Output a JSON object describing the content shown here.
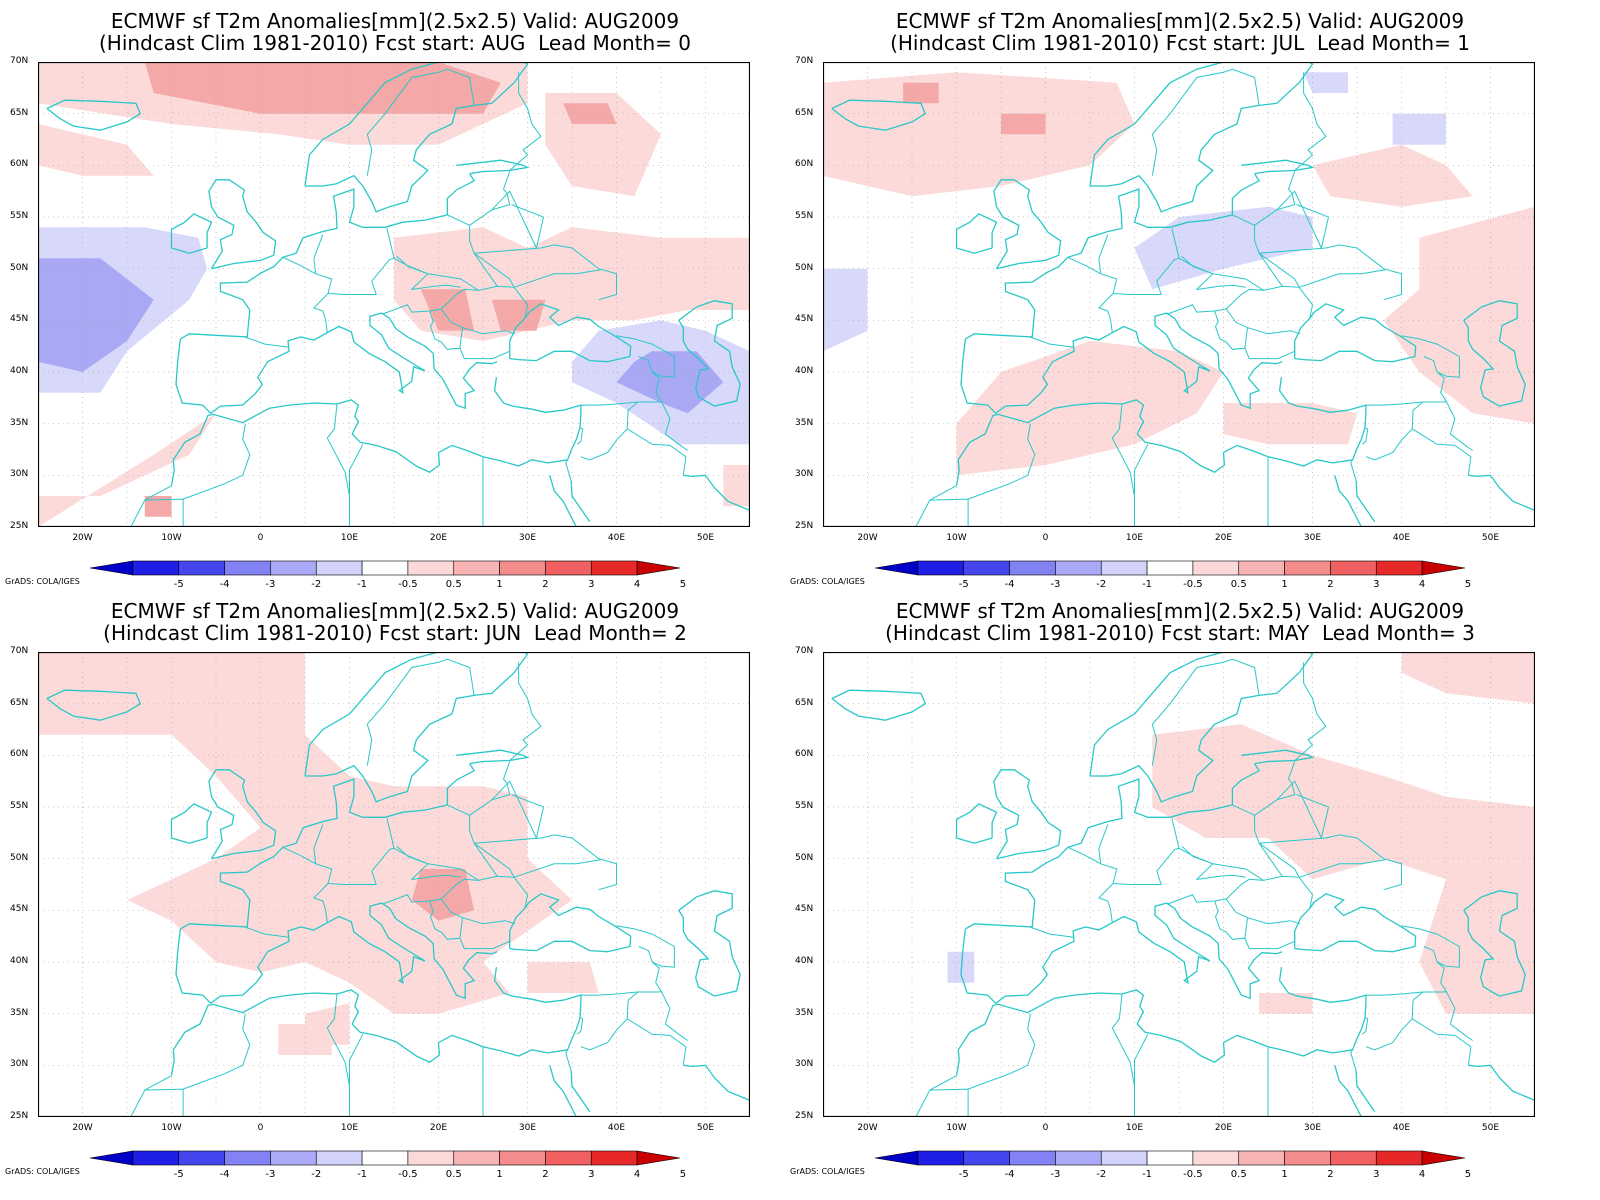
{
  "panels": [
    {
      "line1": "ECMWF sf T2m Anomalies[mm](2.5x2.5) Valid: AUG2009",
      "line2": "(Hindcast Clim 1981-2010) Fcst start: AUG  Lead Month= 0"
    },
    {
      "line1": "ECMWF sf T2m Anomalies[mm](2.5x2.5) Valid: AUG2009",
      "line2": "(Hindcast Clim 1981-2010) Fcst start: JUL  Lead Month= 1"
    },
    {
      "line1": "ECMWF sf T2m Anomalies[mm](2.5x2.5) Valid: AUG2009",
      "line2": "(Hindcast Clim 1981-2010) Fcst start: JUN  Lead Month= 2"
    },
    {
      "line1": "ECMWF sf T2m Anomalies[mm](2.5x2.5) Valid: AUG2009",
      "line2": "(Hindcast Clim 1981-2010) Fcst start: MAY  Lead Month= 3"
    }
  ],
  "lat_labels": [
    "70N",
    "65N",
    "60N",
    "55N",
    "50N",
    "45N",
    "40N",
    "35N",
    "30N",
    "25N"
  ],
  "lon_labels": [
    "20W",
    "10W",
    "0",
    "10E",
    "20E",
    "30E",
    "40E",
    "50E"
  ],
  "colorbar": {
    "labels": [
      "-5",
      "-4",
      "-3",
      "-2",
      "-1",
      "-0.5",
      "0.5",
      "1",
      "2",
      "3",
      "4",
      "5"
    ],
    "colors": [
      "#0000c8",
      "#1e1ee6",
      "#4646f0",
      "#8282f5",
      "#aaaaf8",
      "#d2d2fb",
      "#ffffff",
      "#fcd9d9",
      "#f8b4b4",
      "#f48c8c",
      "#f06060",
      "#e62828",
      "#c80000"
    ]
  },
  "credit": "GrADS: COLA/IGES",
  "colors": {
    "coast": "#28c8c8",
    "neg_light": "#d8d8fa",
    "neg_mid": "#a8a8f5",
    "pos_light": "#fcdada",
    "pos_mid": "#f5a8a8"
  }
}
